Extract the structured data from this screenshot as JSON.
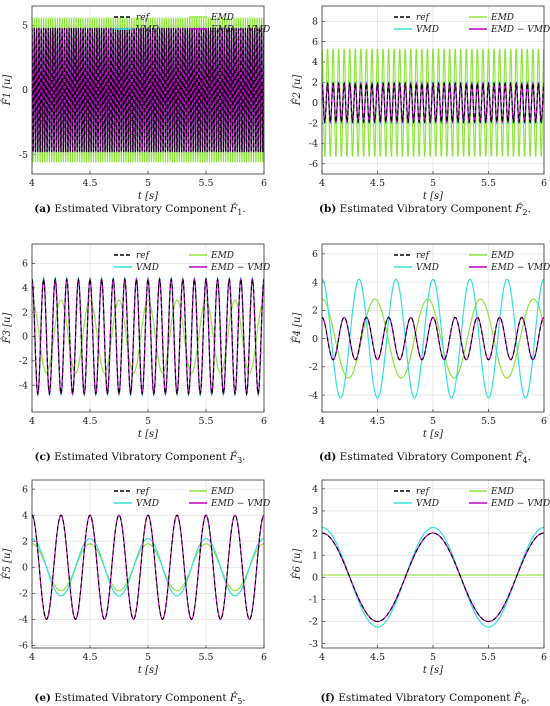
{
  "figure": {
    "captions": [
      {
        "tag": "(a)",
        "text": "Estimated Vibratory Component",
        "sym": "F̂",
        "sub": "1",
        "end": "."
      },
      {
        "tag": "(b)",
        "text": "Estimated Vibratory Component",
        "sym": "F̂",
        "sub": "2",
        "end": "."
      },
      {
        "tag": "(c)",
        "text": "Estimated Vibratory Component",
        "sym": "F̂",
        "sub": "3",
        "end": "."
      },
      {
        "tag": "(d)",
        "text": "Estimated Vibratory Component",
        "sym": "F̂",
        "sub": "4",
        "end": "."
      },
      {
        "tag": "(e)",
        "text": "Estimated Vibratory Component",
        "sym": "F̂",
        "sub": "5",
        "end": "."
      },
      {
        "tag": "(f)",
        "text": "Estimated Vibratory Component",
        "sym": "F̂",
        "sub": "6",
        "end": "."
      }
    ]
  },
  "chart_data": [
    {
      "type": "line",
      "xlabel": "t [s]",
      "ylabel": "F̂1 [u]",
      "xlim": [
        4,
        6
      ],
      "ylim": [
        -6.5,
        6.5
      ],
      "xticks": [
        "4",
        "4.5",
        "5",
        "5.5",
        "6"
      ],
      "yticks": [
        -5,
        0,
        5
      ],
      "grid": true,
      "legend": "top-right",
      "series": [
        {
          "name": "ref",
          "color": "#000000",
          "style": "dashed",
          "freq": 50,
          "amp": 4.8
        },
        {
          "name": "EMD",
          "color": "#8ee63c",
          "style": "solid",
          "freq": 50,
          "amp": 5.6
        },
        {
          "name": "VMD",
          "color": "#33e0e0",
          "style": "solid",
          "freq": 50,
          "amp": 4.8
        },
        {
          "name": "EMD − VMD",
          "color": "#c200c8",
          "style": "solid",
          "freq": 50,
          "amp": 4.8
        }
      ]
    },
    {
      "type": "line",
      "xlabel": "t [s]",
      "ylabel": "F̂2 [u]",
      "xlim": [
        4,
        6
      ],
      "ylim": [
        -7,
        9.5
      ],
      "xticks": [
        "4",
        "4.5",
        "5",
        "5.5",
        "6"
      ],
      "yticks": [
        -6,
        -4,
        -2,
        0,
        2,
        4,
        6,
        8
      ],
      "grid": true,
      "legend": "top-right",
      "series": [
        {
          "name": "ref",
          "color": "#000000",
          "style": "dashed",
          "freq": 20,
          "amp": 1.9
        },
        {
          "name": "EMD",
          "color": "#8ee63c",
          "style": "solid",
          "freq": 20,
          "amp": 5.3
        },
        {
          "name": "VMD",
          "color": "#33e0e0",
          "style": "solid",
          "freq": 20,
          "amp": 2.0
        },
        {
          "name": "EMD − VMD",
          "color": "#c200c8",
          "style": "solid",
          "freq": 20,
          "amp": 1.9
        }
      ]
    },
    {
      "type": "line",
      "xlabel": "t [s]",
      "ylabel": "F̂3 [u]",
      "xlim": [
        4,
        6
      ],
      "ylim": [
        -6.2,
        7.6
      ],
      "xticks": [
        "4",
        "4.5",
        "5",
        "5.5",
        "6"
      ],
      "yticks": [
        -4,
        -2,
        0,
        2,
        4,
        6
      ],
      "grid": true,
      "legend": "top-right",
      "series": [
        {
          "name": "ref",
          "color": "#000000",
          "style": "dashed",
          "freq": 10,
          "amp": 4.7
        },
        {
          "name": "EMD",
          "color": "#8ee63c",
          "style": "solid",
          "freq": 4,
          "amp": 3.0
        },
        {
          "name": "VMD",
          "color": "#33e0e0",
          "style": "solid",
          "freq": 10,
          "amp": 4.8
        },
        {
          "name": "EMD − VMD",
          "color": "#c200c8",
          "style": "solid",
          "freq": 10,
          "amp": 4.7
        }
      ]
    },
    {
      "type": "line",
      "xlabel": "t [s]",
      "ylabel": "F̂4 [u]",
      "xlim": [
        4,
        6
      ],
      "ylim": [
        -5.2,
        6.7
      ],
      "xticks": [
        "4",
        "4.5",
        "5",
        "5.5",
        "6"
      ],
      "yticks": [
        -4,
        -2,
        0,
        2,
        4,
        6
      ],
      "grid": true,
      "legend": "top-right",
      "series": [
        {
          "name": "ref",
          "color": "#000000",
          "style": "dashed",
          "freq": 5,
          "amp": 1.5
        },
        {
          "name": "EMD",
          "color": "#8ee63c",
          "style": "solid",
          "freq": 2.1,
          "amp": 2.8
        },
        {
          "name": "VMD",
          "color": "#33e0e0",
          "style": "solid",
          "freq": 3,
          "amp": 4.2
        },
        {
          "name": "EMD − VMD",
          "color": "#c200c8",
          "style": "solid",
          "freq": 5,
          "amp": 1.5
        }
      ]
    },
    {
      "type": "line",
      "xlabel": "t [s]",
      "ylabel": "F̂5 [u]",
      "xlim": [
        4,
        6
      ],
      "ylim": [
        -6.2,
        6.7
      ],
      "xticks": [
        "4",
        "4.5",
        "5",
        "5.5",
        "6"
      ],
      "yticks": [
        -6,
        -4,
        -2,
        0,
        2,
        4,
        6
      ],
      "grid": true,
      "legend": "top-right",
      "series": [
        {
          "name": "ref",
          "color": "#000000",
          "style": "dashed",
          "freq": 4,
          "amp": 4.0
        },
        {
          "name": "EMD",
          "color": "#8ee63c",
          "style": "solid",
          "freq": 2,
          "amp": 1.8
        },
        {
          "name": "VMD",
          "color": "#33e0e0",
          "style": "solid",
          "freq": 2,
          "amp": 2.2
        },
        {
          "name": "EMD − VMD",
          "color": "#c200c8",
          "style": "solid",
          "freq": 4,
          "amp": 4.0
        }
      ]
    },
    {
      "type": "line",
      "xlabel": "t [s]",
      "ylabel": "F̂6 [u]",
      "xlim": [
        4,
        6
      ],
      "ylim": [
        -3.2,
        4.4
      ],
      "xticks": [
        "4",
        "4.5",
        "5",
        "5.5",
        "6"
      ],
      "yticks": [
        -3,
        -2,
        -1,
        0,
        1,
        2,
        3,
        4
      ],
      "grid": true,
      "legend": "top-right",
      "series": [
        {
          "name": "ref",
          "color": "#000000",
          "style": "dashed",
          "freq": 1,
          "amp": 2.0
        },
        {
          "name": "EMD",
          "color": "#8ee63c",
          "style": "solid",
          "freq": 0,
          "amp": 0.1
        },
        {
          "name": "VMD",
          "color": "#33e0e0",
          "style": "solid",
          "freq": 1,
          "amp": 2.25
        },
        {
          "name": "EMD − VMD",
          "color": "#c200c8",
          "style": "solid",
          "freq": 1,
          "amp": 2.0
        }
      ]
    }
  ]
}
